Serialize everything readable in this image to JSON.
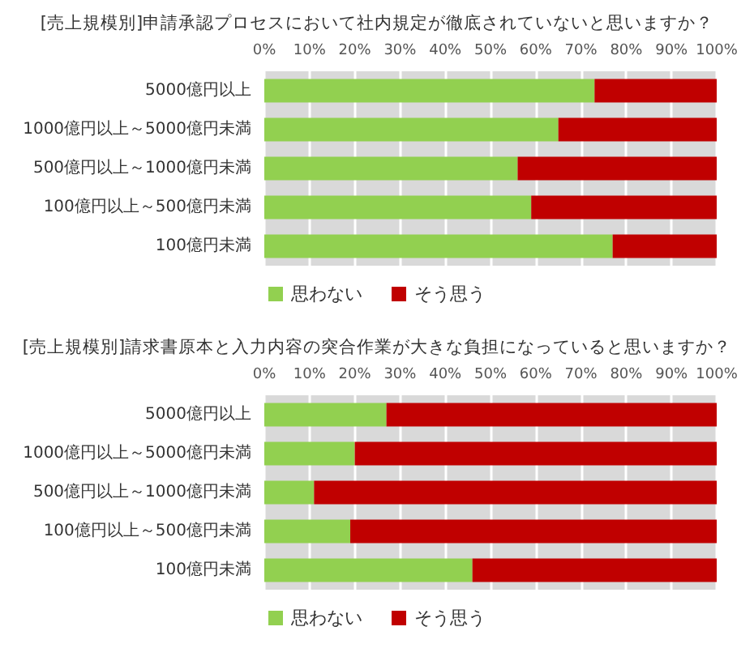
{
  "chart_data": [
    {
      "type": "bar",
      "orientation": "horizontal",
      "stacked": true,
      "title": "[売上規模別]申請承認プロセスにおいて社内規定が徹底されていないと思いますか？",
      "categories": [
        "5000億円以上",
        "1000億円以上～5000億円未満",
        "500億円以上～1000億円未満",
        "100億円以上～500億円未満",
        "100億円未満"
      ],
      "series": [
        {
          "name": "思わない",
          "color": "#92d050",
          "values": [
            73,
            65,
            56,
            59,
            77
          ]
        },
        {
          "name": "そう思う",
          "color": "#c00000",
          "values": [
            27,
            35,
            44,
            41,
            23
          ]
        }
      ],
      "xlim": [
        0,
        100
      ],
      "xticks": [
        {
          "value": 0,
          "label": "0%"
        },
        {
          "value": 10,
          "label": "10%"
        },
        {
          "value": 20,
          "label": "20%"
        },
        {
          "value": 30,
          "label": "30%"
        },
        {
          "value": 40,
          "label": "40%"
        },
        {
          "value": 50,
          "label": "50%"
        },
        {
          "value": 60,
          "label": "60%"
        },
        {
          "value": 70,
          "label": "70%"
        },
        {
          "value": 80,
          "label": "80%"
        },
        {
          "value": 90,
          "label": "90%"
        },
        {
          "value": 100,
          "label": "100%"
        }
      ],
      "grid": "x",
      "legend": "bottom"
    },
    {
      "type": "bar",
      "orientation": "horizontal",
      "stacked": true,
      "title": "[売上規模別]請求書原本と入力内容の突合作業が大きな負担になっていると思いますか？",
      "categories": [
        "5000億円以上",
        "1000億円以上～5000億円未満",
        "500億円以上～1000億円未満",
        "100億円以上～500億円未満",
        "100億円未満"
      ],
      "series": [
        {
          "name": "思わない",
          "color": "#92d050",
          "values": [
            27,
            20,
            11,
            19,
            46
          ]
        },
        {
          "name": "そう思う",
          "color": "#c00000",
          "values": [
            73,
            80,
            89,
            81,
            54
          ]
        }
      ],
      "xlim": [
        0,
        100
      ],
      "xticks": [
        {
          "value": 0,
          "label": "0%"
        },
        {
          "value": 10,
          "label": "10%"
        },
        {
          "value": 20,
          "label": "20%"
        },
        {
          "value": 30,
          "label": "30%"
        },
        {
          "value": 40,
          "label": "40%"
        },
        {
          "value": 50,
          "label": "50%"
        },
        {
          "value": 60,
          "label": "60%"
        },
        {
          "value": 70,
          "label": "70%"
        },
        {
          "value": 80,
          "label": "80%"
        },
        {
          "value": 90,
          "label": "90%"
        },
        {
          "value": 100,
          "label": "100%"
        }
      ],
      "grid": "x",
      "legend": "bottom"
    }
  ]
}
